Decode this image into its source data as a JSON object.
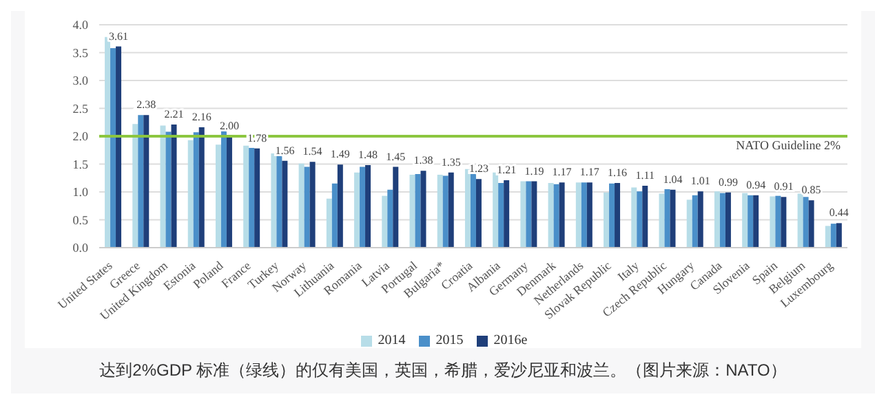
{
  "chart_data": {
    "type": "bar",
    "categories": [
      "United States",
      "Greece",
      "United Kingdom",
      "Estonia",
      "Poland",
      "France",
      "Turkey",
      "Norway",
      "Lithuania",
      "Romania",
      "Latvia",
      "Portugal",
      "Bulgaria*",
      "Croatia",
      "Albania",
      "Germany",
      "Denmark",
      "Netherlands",
      "Slovak Republic",
      "Italy",
      "Czech Republic",
      "Hungary",
      "Canada",
      "Slovenia",
      "Spain",
      "Belgium",
      "Luxembourg"
    ],
    "series": [
      {
        "name": "2014",
        "color": "#b7dde8",
        "values": [
          3.78,
          2.22,
          2.19,
          1.93,
          1.85,
          1.83,
          1.69,
          1.51,
          0.88,
          1.35,
          0.93,
          1.31,
          1.31,
          1.41,
          1.35,
          1.19,
          1.16,
          1.17,
          0.99,
          1.08,
          0.97,
          0.86,
          1.01,
          0.98,
          0.92,
          0.97,
          0.39
        ]
      },
      {
        "name": "2015",
        "color": "#4a8fc9",
        "values": [
          3.58,
          2.38,
          2.08,
          2.07,
          2.23,
          1.79,
          1.66,
          1.45,
          1.15,
          1.45,
          1.04,
          1.32,
          1.29,
          1.37,
          1.16,
          1.19,
          1.14,
          1.17,
          1.15,
          1.01,
          1.05,
          0.94,
          0.98,
          0.94,
          0.93,
          0.91,
          0.43
        ]
      },
      {
        "name": "2016e",
        "color": "#1f3f7a",
        "values": [
          3.61,
          2.38,
          2.21,
          2.16,
          2.0,
          1.78,
          1.56,
          1.54,
          1.49,
          1.48,
          1.45,
          1.38,
          1.35,
          1.23,
          1.21,
          1.19,
          1.17,
          1.17,
          1.16,
          1.11,
          1.04,
          1.01,
          0.99,
          0.94,
          0.91,
          0.85,
          0.44
        ],
        "value_labels": [
          "3.61",
          "2.38",
          "2.21",
          "2.16",
          "2.00",
          "1.78",
          "1.56",
          "1.54",
          "1.49",
          "1.48",
          "1.45",
          "1.38",
          "1.35",
          "1.23",
          "1.21",
          "1.19",
          "1.17",
          "1.17",
          "1.16",
          "1.11",
          "1.04",
          "1.01",
          "0.99",
          "0.94",
          "0.91",
          "0.85",
          "0.44"
        ]
      }
    ],
    "ylim": [
      0,
      4
    ],
    "yticks": [
      {
        "value": 0,
        "label": "0.0"
      },
      {
        "value": 0.5,
        "label": "0.5"
      },
      {
        "value": 1,
        "label": "1.0"
      },
      {
        "value": 1.5,
        "label": "1.5"
      },
      {
        "value": 2,
        "label": "2.0"
      },
      {
        "value": 2.5,
        "label": "2.5"
      },
      {
        "value": 3,
        "label": "3.0"
      },
      {
        "value": 3.5,
        "label": "3.5"
      },
      {
        "value": 4,
        "label": "4.0"
      }
    ],
    "grid": "y",
    "legend": "bottom",
    "ref_lines": [
      {
        "axis": "y",
        "value": 2,
        "label": "NATO Guideline 2%",
        "color": "#8cc63f"
      }
    ],
    "annotations": [
      "达到2%GDP 标准（绿线）的仅有美国，英国，希腊，爱沙尼亚和波兰。（图片来源：NATO）"
    ]
  }
}
